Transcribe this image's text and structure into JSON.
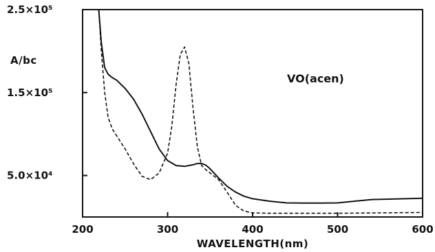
{
  "chart_data": {
    "type": "line",
    "title": "",
    "annotation": "VO(acen)",
    "xlabel": "WAVELENGTH(nm)",
    "ylabel": "A/bc",
    "xlim": [
      200,
      600
    ],
    "ylim": [
      0,
      250000
    ],
    "x_ticks": [
      200,
      300,
      400,
      500,
      600
    ],
    "x_tick_labels": [
      "200",
      "300",
      "400",
      "500",
      "600"
    ],
    "y_ticks": [
      50000,
      150000,
      250000
    ],
    "y_tick_labels": [
      "5.0×10⁴",
      "1.5×10⁵",
      "2.5×10⁵"
    ],
    "grid": false,
    "series": [
      {
        "style": "solid",
        "x": [
          219,
          222,
          226,
          230,
          235,
          240,
          250,
          260,
          270,
          280,
          290,
          300,
          310,
          320,
          330,
          335,
          340,
          345,
          350,
          360,
          370,
          380,
          390,
          400,
          420,
          440,
          460,
          480,
          500,
          520,
          540,
          560,
          580,
          600
        ],
        "y": [
          250000,
          210000,
          180000,
          172000,
          168000,
          165000,
          155000,
          142000,
          124000,
          103000,
          82000,
          68000,
          62000,
          61000,
          63000,
          64500,
          64500,
          62500,
          58000,
          47000,
          37000,
          30000,
          25000,
          22000,
          19000,
          17000,
          16800,
          16800,
          17000,
          19000,
          21000,
          21500,
          22000,
          22500
        ]
      },
      {
        "style": "dashed",
        "x": [
          219,
          222,
          226,
          230,
          235,
          240,
          250,
          260,
          270,
          280,
          290,
          300,
          305,
          310,
          315,
          320,
          325,
          330,
          335,
          340,
          345,
          350,
          360,
          370,
          380,
          390,
          400,
          420,
          450,
          500,
          550,
          600
        ],
        "y": [
          250000,
          200000,
          150000,
          120000,
          106000,
          98000,
          82000,
          64000,
          49000,
          45000,
          53000,
          77000,
          110000,
          160000,
          196000,
          205000,
          185000,
          130000,
          85000,
          62000,
          57000,
          53000,
          45000,
          30000,
          14000,
          7000,
          5000,
          4500,
          4500,
          4500,
          5000,
          5500
        ]
      }
    ]
  }
}
